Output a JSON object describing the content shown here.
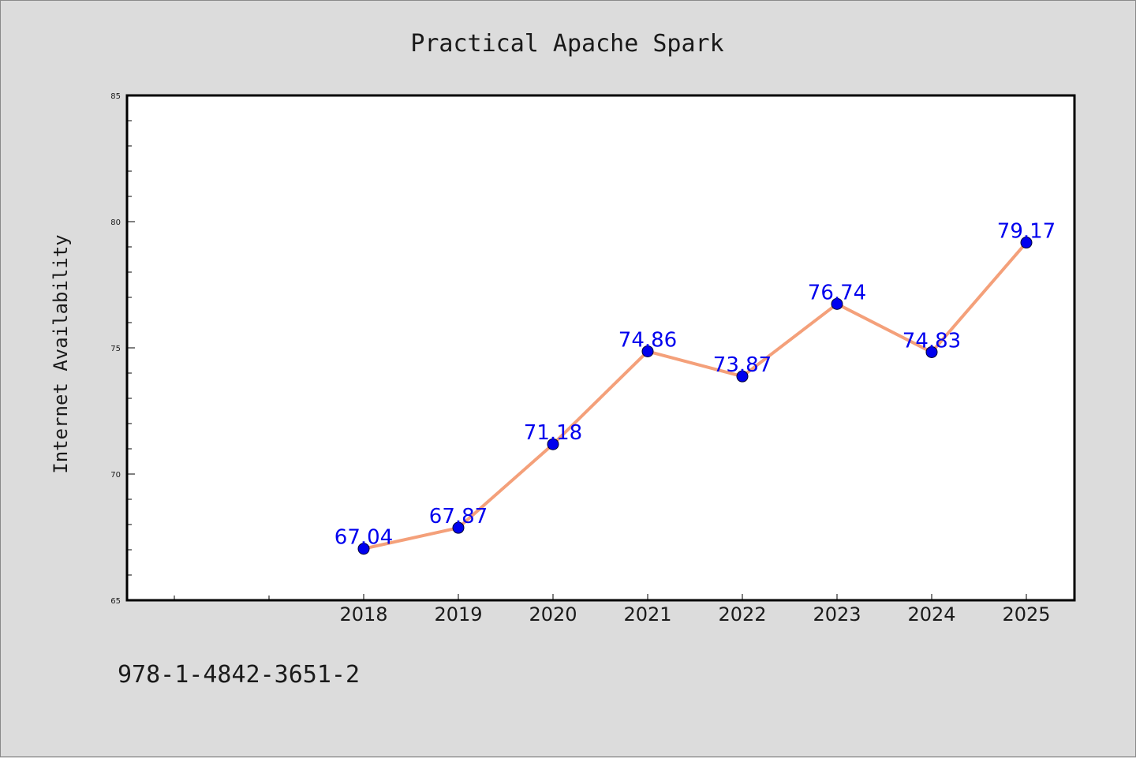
{
  "chart_data": {
    "type": "line",
    "title": "Practical Apache Spark",
    "xlabel": "",
    "ylabel": "Internet Availability",
    "categories": [
      "2018",
      "2019",
      "2020",
      "2021",
      "2022",
      "2023",
      "2024",
      "2025"
    ],
    "values": [
      67.04,
      67.87,
      71.18,
      74.86,
      73.87,
      76.74,
      74.83,
      79.17
    ],
    "data_labels": [
      "67.04",
      "67.87",
      "71.18",
      "74.86",
      "73.87",
      "76.74",
      "74.83",
      "79.17"
    ],
    "ylim": [
      65,
      85
    ],
    "yticks": [
      "65",
      "70",
      "75",
      "80",
      "85"
    ],
    "grid": false,
    "line_color": "#f4a07a",
    "marker_color": "#0000ee",
    "label_color": "#0000ee"
  },
  "footer": {
    "isbn": "978-1-4842-3651-2"
  }
}
